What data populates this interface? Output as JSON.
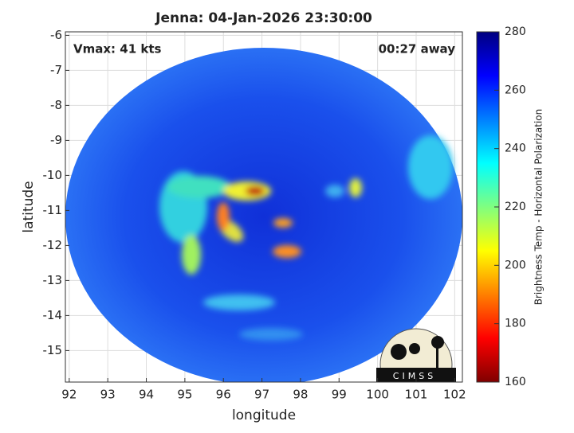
{
  "chart_data": {
    "type": "image",
    "title": "Jenna: 04-Jan-2026 23:30:00",
    "annotations": [
      "Vmax: 41 kts",
      "00:27 away"
    ],
    "logo": "CIMSS",
    "x_label": "longitude",
    "y_label": "latitude",
    "xlim": [
      91.9,
      102.2
    ],
    "xticks": [
      92,
      93,
      94,
      95,
      96,
      97,
      98,
      99,
      100,
      101,
      102
    ],
    "ylim": [
      -15.9,
      -5.9
    ],
    "yticks": [
      -6,
      -7,
      -8,
      -9,
      -10,
      -11,
      -12,
      -13,
      -14,
      -15
    ],
    "grid": true,
    "colorbar": {
      "label": "Brightness Temp - Horizontal Polarization",
      "lim": [
        160,
        280
      ],
      "ticks": [
        160,
        180,
        200,
        220,
        240,
        260,
        280
      ],
      "colormap": "jet"
    }
  }
}
